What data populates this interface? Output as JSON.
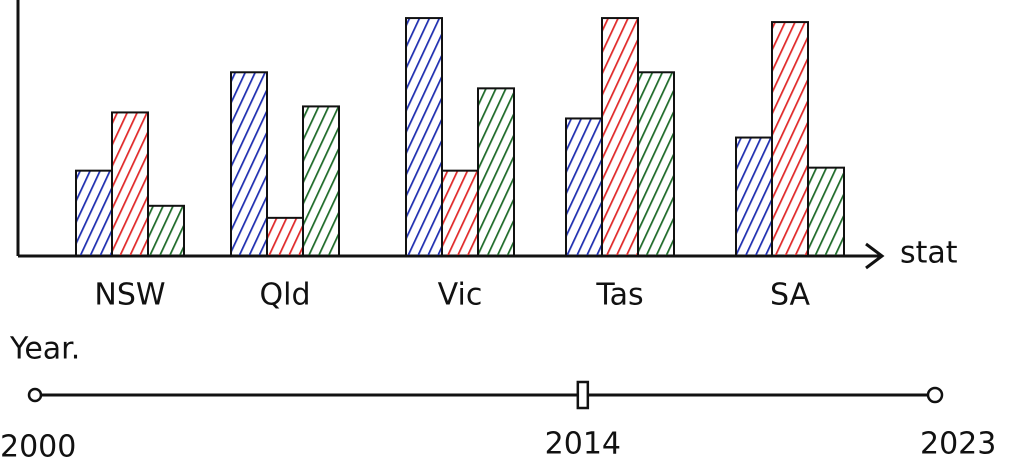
{
  "chart_data": {
    "type": "bar",
    "x_label": "stat",
    "categories": [
      "NSW",
      "Qld",
      "Vic",
      "Tas",
      "SA"
    ],
    "series": [
      {
        "color": "#1f2fb0",
        "values": [
          85,
          183,
          237,
          137,
          118
        ]
      },
      {
        "color": "#e02a2a",
        "values": [
          143,
          38,
          85,
          237,
          233
        ]
      },
      {
        "color": "#1f6b2a",
        "values": [
          50,
          149,
          167,
          183,
          88
        ]
      }
    ],
    "ylim": [
      0,
      255
    ]
  },
  "slider": {
    "label": "Year.",
    "min": 2000,
    "max": 2023,
    "value": 2014
  }
}
